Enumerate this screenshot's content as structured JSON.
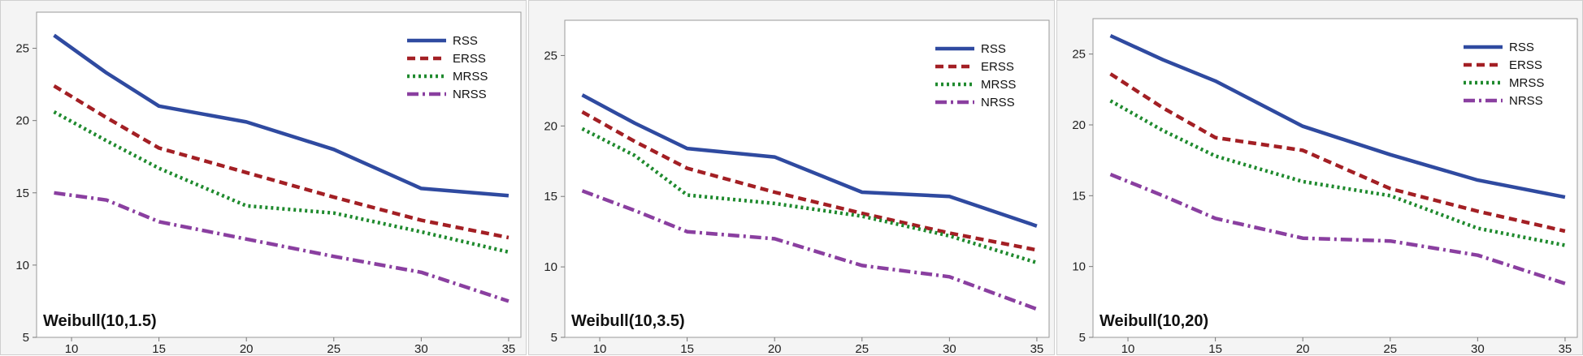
{
  "chart_data": [
    {
      "type": "line",
      "title": "Weibull(10,1.5)",
      "x": [
        9,
        12,
        15,
        20,
        25,
        30,
        35
      ],
      "xticks": [
        10,
        15,
        20,
        25,
        30,
        35
      ],
      "yticks": [
        5,
        10,
        15,
        20,
        25
      ],
      "ylim": [
        5,
        27.5
      ],
      "xlim": [
        8,
        35.7
      ],
      "series": [
        {
          "name": "RSS",
          "values": [
            25.9,
            23.3,
            21.0,
            19.9,
            18.0,
            15.3,
            14.8
          ]
        },
        {
          "name": "ERSS",
          "values": [
            22.4,
            20.2,
            18.1,
            16.4,
            14.7,
            13.1,
            11.9
          ]
        },
        {
          "name": "MRSS",
          "values": [
            20.6,
            18.6,
            16.7,
            14.1,
            13.6,
            12.3,
            10.9
          ]
        },
        {
          "name": "NRSS",
          "values": [
            15.0,
            14.5,
            13.0,
            11.8,
            10.6,
            9.5,
            7.5
          ]
        }
      ]
    },
    {
      "type": "line",
      "title": "Weibull(10,3.5)",
      "x": [
        9,
        12,
        15,
        20,
        25,
        30,
        35
      ],
      "xticks": [
        10,
        15,
        20,
        25,
        30,
        35
      ],
      "yticks": [
        5,
        10,
        15,
        20,
        25
      ],
      "ylim": [
        5,
        27.5
      ],
      "xlim": [
        8,
        35.7
      ],
      "series": [
        {
          "name": "RSS",
          "values": [
            22.2,
            20.2,
            18.4,
            17.8,
            15.3,
            15.0,
            12.9
          ]
        },
        {
          "name": "ERSS",
          "values": [
            21.0,
            18.9,
            17.0,
            15.3,
            13.8,
            12.4,
            11.2
          ]
        },
        {
          "name": "MRSS",
          "values": [
            19.8,
            17.9,
            15.1,
            14.5,
            13.6,
            12.2,
            10.3
          ]
        },
        {
          "name": "NRSS",
          "values": [
            15.4,
            14.0,
            12.5,
            12.0,
            10.1,
            9.3,
            7.0
          ]
        }
      ]
    },
    {
      "type": "line",
      "title": "Weibull(10,20)",
      "x": [
        9,
        12,
        15,
        20,
        25,
        30,
        35
      ],
      "xticks": [
        10,
        15,
        20,
        25,
        30,
        35
      ],
      "yticks": [
        5,
        10,
        15,
        20,
        25
      ],
      "ylim": [
        5,
        27.5
      ],
      "xlim": [
        8,
        35.7
      ],
      "series": [
        {
          "name": "RSS",
          "values": [
            26.3,
            24.6,
            23.1,
            19.9,
            17.9,
            16.1,
            14.9
          ]
        },
        {
          "name": "ERSS",
          "values": [
            23.6,
            21.2,
            19.1,
            18.2,
            15.5,
            13.9,
            12.5
          ]
        },
        {
          "name": "MRSS",
          "values": [
            21.7,
            19.6,
            17.8,
            16.0,
            15.0,
            12.7,
            11.5
          ]
        },
        {
          "name": "NRSS",
          "values": [
            16.5,
            15.0,
            13.4,
            12.0,
            11.8,
            10.8,
            8.8
          ]
        }
      ]
    }
  ],
  "styles": {
    "RSS": {
      "color": "#2f4aa0",
      "dash": ""
    },
    "ERSS": {
      "color": "#a31f24",
      "dash": "10,6"
    },
    "MRSS": {
      "color": "#1f8a2e",
      "dash": "3,4"
    },
    "NRSS": {
      "color": "#8a3fa0",
      "dash": "14,5,3,5"
    }
  }
}
